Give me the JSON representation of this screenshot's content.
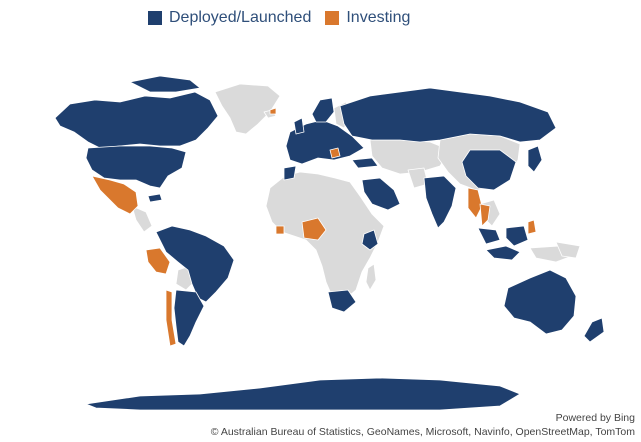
{
  "legend": {
    "items": [
      {
        "label": "Deployed/Launched",
        "color": "#1f3f6e"
      },
      {
        "label": "Investing",
        "color": "#d9782d"
      }
    ]
  },
  "colors": {
    "deployed": "#1f3f6e",
    "investing": "#d9782d",
    "other": "#dadada"
  },
  "credits": {
    "powered": "Powered by Bing",
    "copyright": "© Australian Bureau of Statistics, GeoNames, Microsoft, Navinfo, OpenStreetMap, TomTom"
  }
}
